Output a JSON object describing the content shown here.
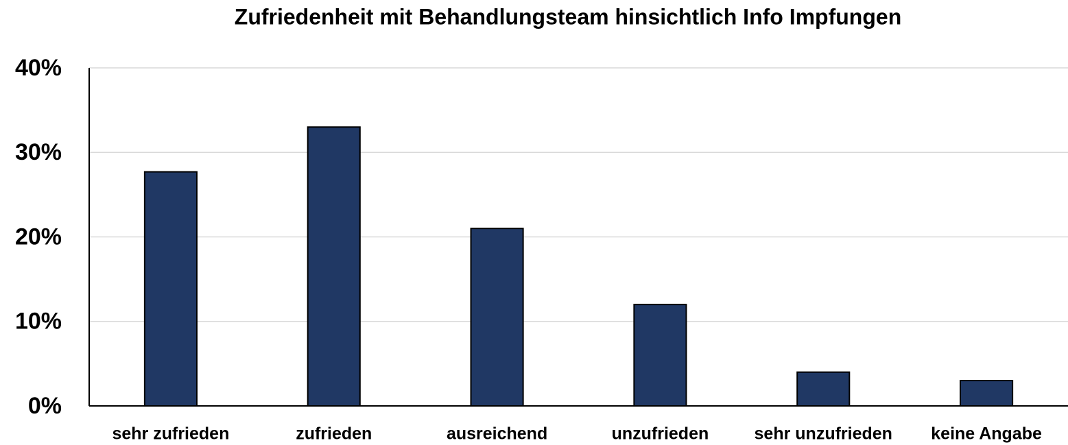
{
  "chart_data": {
    "type": "bar",
    "title": "Zufriedenheit mit Behandlungsteam hinsichtlich Info Impfungen",
    "categories": [
      "sehr zufrieden",
      "zufrieden",
      "ausreichend",
      "unzufrieden",
      "sehr unzufrieden",
      "keine Angabe"
    ],
    "values": [
      27.7,
      33.0,
      21.0,
      12.0,
      4.0,
      3.0
    ],
    "color": "#203864",
    "ylim": [
      0,
      40
    ],
    "yticks": [
      {
        "value": 0,
        "label": "0%"
      },
      {
        "value": 10,
        "label": "10%"
      },
      {
        "value": 20,
        "label": "20%"
      },
      {
        "value": 30,
        "label": "30%"
      },
      {
        "value": 40,
        "label": "40%"
      }
    ],
    "grid": true
  }
}
